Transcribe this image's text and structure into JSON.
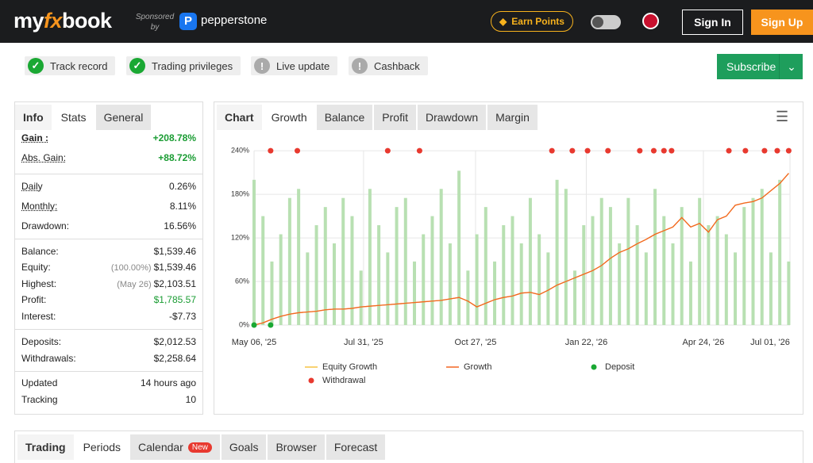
{
  "header": {
    "logo": [
      "my",
      "fx",
      "book"
    ],
    "sponsored": "Sponsored by",
    "sponsor": "pepperstone",
    "earn": "Earn Points",
    "signin": "Sign In",
    "signup": "Sign Up"
  },
  "badges": [
    {
      "label": "Track record",
      "ok": true
    },
    {
      "label": "Trading privileges",
      "ok": true
    },
    {
      "label": "Live update",
      "ok": false
    },
    {
      "label": "Cashback",
      "ok": false
    }
  ],
  "subscribe": "Subscribe",
  "left_tabs": [
    "Info",
    "Stats",
    "General"
  ],
  "stats": [
    [
      {
        "label": "Gain :",
        "value": "+208.78%",
        "color": "#1a9c33"
      },
      {
        "label": "Abs. Gain:",
        "value": "+88.72%",
        "color": "#1a9c33"
      }
    ],
    [
      {
        "label": "Daily",
        "value": "0.26%"
      },
      {
        "label": "Monthly:",
        "value": "8.11%"
      },
      {
        "label": "Drawdown:",
        "value": "16.56%"
      }
    ],
    [
      {
        "label": "Balance:",
        "value": "$1,539.46"
      },
      {
        "label": "Equity:",
        "note": "(100.00%)",
        "value": "$1,539.46"
      },
      {
        "label": "Highest:",
        "note": "(May 26)",
        "value": "$2,103.51"
      },
      {
        "label": "Profit:",
        "value": "$1,785.57",
        "color": "#1a9c33"
      },
      {
        "label": "Interest:",
        "value": "-$7.73"
      }
    ],
    [
      {
        "label": "Deposits:",
        "value": "$2,012.53"
      },
      {
        "label": "Withdrawals:",
        "value": "$2,258.64"
      }
    ],
    [
      {
        "label": "Updated",
        "value": "14 hours ago"
      },
      {
        "label": "Tracking",
        "value": "10"
      }
    ]
  ],
  "chart_tabs": [
    "Chart",
    "Growth",
    "Balance",
    "Profit",
    "Drawdown",
    "Margin"
  ],
  "bottom_tabs": [
    "Trading",
    "Periods",
    "Calendar",
    "Goals",
    "Browser",
    "Forecast"
  ],
  "new_badge": "New",
  "chart_data": {
    "type": "line",
    "x": [
      "2025-05-06",
      "2025-05-13",
      "2025-05-20",
      "2025-05-27",
      "2025-06-03",
      "2025-06-10",
      "2025-06-17",
      "2025-06-24",
      "2025-07-01",
      "2025-07-08",
      "2025-07-15",
      "2025-07-22",
      "2025-07-29",
      "2025-08-05",
      "2025-08-12",
      "2025-08-19",
      "2025-08-26",
      "2025-09-02",
      "2025-09-09",
      "2025-09-16",
      "2025-09-23",
      "2025-09-30",
      "2025-10-07",
      "2025-10-14",
      "2025-10-21",
      "2025-10-28",
      "2025-11-04",
      "2025-11-11",
      "2025-11-18",
      "2025-11-25",
      "2025-12-02",
      "2025-12-09",
      "2025-12-16",
      "2025-12-23",
      "2025-12-30",
      "2026-01-06",
      "2026-01-13",
      "2026-01-20",
      "2026-01-27",
      "2026-02-03",
      "2026-02-10",
      "2026-02-17",
      "2026-02-24",
      "2026-03-03",
      "2026-03-10",
      "2026-03-17",
      "2026-03-24",
      "2026-03-31",
      "2026-04-07",
      "2026-04-14",
      "2026-04-21",
      "2026-04-28",
      "2026-05-05",
      "2026-05-12",
      "2026-05-19",
      "2026-05-26",
      "2026-06-02",
      "2026-06-09",
      "2026-06-16",
      "2026-06-23",
      "2026-06-30"
    ],
    "series": [
      {
        "color": "#b8e0b2",
        "axis": "y2",
        "values": [
          80,
          60,
          35,
          50,
          70,
          75,
          40,
          55,
          65,
          45,
          70,
          60,
          30,
          75,
          55,
          40,
          65,
          70,
          35,
          50,
          60,
          75,
          45,
          85,
          30,
          50,
          65,
          35,
          55,
          60,
          45,
          70,
          50,
          40,
          80,
          75,
          30,
          55,
          60,
          70,
          65,
          45,
          70,
          55,
          40,
          75,
          60,
          45,
          65,
          35,
          70,
          55,
          60,
          50,
          40,
          65,
          70,
          75,
          40,
          80,
          35
        ]
      },
      {
        "name": "Equity Growth",
        "color": "#f5c342",
        "values": [
          0,
          3,
          8,
          12,
          15,
          17,
          18,
          19,
          21,
          22,
          22,
          23,
          25,
          26,
          27,
          28,
          29,
          30,
          31,
          32,
          33,
          34,
          36,
          38,
          33,
          25,
          30,
          35,
          38,
          40,
          44,
          45,
          42,
          48,
          55,
          60,
          65,
          70,
          75,
          82,
          92,
          100,
          105,
          112,
          118,
          125,
          130,
          135,
          148,
          135,
          140,
          128,
          145,
          150,
          165,
          168,
          170,
          175,
          185,
          195,
          209
        ]
      },
      {
        "name": "Growth",
        "color": "#f26522",
        "values": [
          0,
          3,
          8,
          12,
          15,
          17,
          18,
          19,
          21,
          22,
          22,
          23,
          25,
          26,
          27,
          28,
          29,
          30,
          31,
          32,
          33,
          34,
          36,
          38,
          33,
          25,
          30,
          35,
          38,
          40,
          44,
          45,
          42,
          48,
          55,
          60,
          65,
          70,
          75,
          82,
          92,
          100,
          105,
          112,
          118,
          125,
          130,
          135,
          148,
          135,
          140,
          128,
          145,
          150,
          165,
          168,
          170,
          175,
          185,
          195,
          209
        ]
      },
      {
        "name": "Deposit",
        "color": "#1aa833",
        "type": "scatter",
        "x": [
          "2025-05-06",
          "2025-05-19"
        ],
        "values": [
          0,
          0
        ]
      },
      {
        "name": "Withdrawal",
        "color": "#e8392f",
        "type": "scatter",
        "x": [
          "2025-05-19",
          "2025-06-09",
          "2025-08-19",
          "2025-09-13",
          "2025-12-26",
          "2026-01-11",
          "2026-01-23",
          "2026-02-08",
          "2026-03-05",
          "2026-03-16",
          "2026-03-24",
          "2026-03-30",
          "2026-05-14",
          "2026-05-27",
          "2026-06-11",
          "2026-06-21",
          "2026-06-30"
        ],
        "values": [
          240,
          240,
          240,
          240,
          240,
          240,
          240,
          240,
          240,
          240,
          240,
          240,
          240,
          240,
          240,
          240,
          240
        ]
      }
    ],
    "xlim": [
      "2025-05-06",
      "2026-07-01"
    ],
    "xticks": [
      {
        "value": "2025-05-06",
        "label": "May 06, '25"
      },
      {
        "value": "2025-07-31",
        "label": "Jul 31, '25"
      },
      {
        "value": "2025-10-27",
        "label": "Oct 27, '25"
      },
      {
        "value": "2026-01-22",
        "label": "Jan 22, '26"
      },
      {
        "value": "2026-04-24",
        "label": "Apr 24, '26"
      },
      {
        "value": "2026-07-01",
        "label": "Jul 01, '26"
      }
    ],
    "ylim": [
      0,
      250
    ],
    "yticks": [
      {
        "value": 0,
        "label": "0%"
      },
      {
        "value": 60,
        "label": "60%"
      },
      {
        "value": 120,
        "label": "120%"
      },
      {
        "value": 180,
        "label": "180%"
      },
      {
        "value": 240,
        "label": "240%"
      }
    ],
    "y2lim": [
      0,
      100
    ],
    "grid": true
  }
}
